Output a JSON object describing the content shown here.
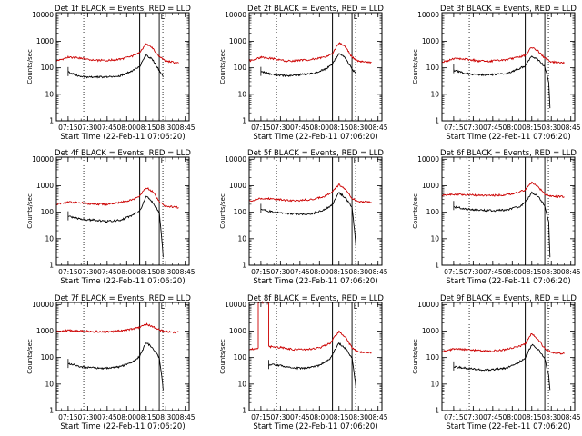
{
  "chart_data": [
    {
      "type": "line",
      "title": "Det 1f BLACK = Events, RED = LLD",
      "xlabel": "Start Time (22-Feb-11 07:06:20)",
      "ylabel": "Counts/sec",
      "xlim": [
        "07:06",
        "08:48"
      ],
      "ylim": [
        1,
        12000
      ],
      "y_scale": "log",
      "x_tick_labels": [
        "07:15",
        "07:30",
        "07:45",
        "08:00",
        "08:15",
        "08:30",
        "08:45"
      ],
      "y_tick_labels": [
        "1",
        "10",
        "100",
        "1000",
        "10000"
      ],
      "y_tick_values": [
        1,
        10,
        100,
        1000,
        10000
      ],
      "marker_lines": [
        "07:27",
        "08:10",
        "08:25"
      ],
      "flag_label": "L",
      "flag_time": "08:25",
      "series": [
        {
          "color": "#cc0000",
          "x": [
            "07:06",
            "07:15",
            "07:25",
            "07:35",
            "07:45",
            "07:55",
            "08:05",
            "08:10",
            "08:15",
            "08:20",
            "08:25",
            "08:30",
            "08:40"
          ],
          "y": [
            180,
            250,
            230,
            190,
            190,
            210,
            280,
            380,
            800,
            550,
            260,
            180,
            150
          ]
        },
        {
          "color": "#000000",
          "x": [
            "07:15",
            "07:25",
            "07:35",
            "07:45",
            "07:55",
            "08:05",
            "08:10",
            "08:15",
            "08:20",
            "08:25",
            "08:28"
          ],
          "y": [
            70,
            45,
            45,
            45,
            50,
            80,
            110,
            310,
            200,
            80,
            45
          ]
        }
      ]
    },
    {
      "type": "line",
      "title": "Det 2f BLACK = Events, RED = LLD",
      "xlabel": "Start Time (22-Feb-11 07:06:20)",
      "ylabel": "Counts/sec",
      "xlim": [
        "07:06",
        "08:48"
      ],
      "ylim": [
        1,
        12000
      ],
      "y_scale": "log",
      "x_tick_labels": [
        "07:15",
        "07:30",
        "07:45",
        "08:00",
        "08:15",
        "08:30",
        "08:45"
      ],
      "y_tick_labels": [
        "1",
        "10",
        "100",
        "1000",
        "10000"
      ],
      "y_tick_values": [
        1,
        10,
        100,
        1000,
        10000
      ],
      "marker_lines": [
        "07:27",
        "08:10",
        "08:25"
      ],
      "flag_label": "L",
      "flag_time": "08:25",
      "series": [
        {
          "color": "#cc0000",
          "x": [
            "07:06",
            "07:15",
            "07:25",
            "07:35",
            "07:45",
            "07:55",
            "08:05",
            "08:10",
            "08:15",
            "08:20",
            "08:25",
            "08:30",
            "08:40"
          ],
          "y": [
            180,
            250,
            220,
            180,
            190,
            210,
            260,
            350,
            900,
            600,
            250,
            180,
            160
          ]
        },
        {
          "color": "#000000",
          "x": [
            "07:15",
            "07:25",
            "07:35",
            "07:45",
            "07:55",
            "08:05",
            "08:10",
            "08:15",
            "08:20",
            "08:25",
            "08:28"
          ],
          "y": [
            70,
            55,
            50,
            55,
            60,
            90,
            140,
            350,
            230,
            90,
            60
          ]
        }
      ]
    },
    {
      "type": "line",
      "title": "Det 3f BLACK = Events, RED = LLD",
      "xlabel": "Start Time (22-Feb-11 07:06:20)",
      "ylabel": "Counts/sec",
      "xlim": [
        "07:06",
        "08:48"
      ],
      "ylim": [
        1,
        12000
      ],
      "y_scale": "log",
      "x_tick_labels": [
        "07:15",
        "07:30",
        "07:45",
        "08:00",
        "08:15",
        "08:30",
        "08:45"
      ],
      "y_tick_labels": [
        "1",
        "10",
        "100",
        "1000",
        "10000"
      ],
      "y_tick_values": [
        1,
        10,
        100,
        1000,
        10000
      ],
      "marker_lines": [
        "07:27",
        "08:10",
        "08:25"
      ],
      "flag_label": "L",
      "flag_time": "08:25",
      "series": [
        {
          "color": "#cc0000",
          "x": [
            "07:06",
            "07:15",
            "07:25",
            "07:35",
            "07:45",
            "07:55",
            "08:05",
            "08:10",
            "08:15",
            "08:20",
            "08:25",
            "08:30",
            "08:40"
          ],
          "y": [
            160,
            220,
            210,
            180,
            180,
            200,
            250,
            300,
            600,
            420,
            230,
            170,
            150
          ]
        },
        {
          "color": "#000000",
          "x": [
            "07:15",
            "07:25",
            "07:35",
            "07:45",
            "07:55",
            "08:05",
            "08:10",
            "08:15",
            "08:20",
            "08:25",
            "08:28",
            "08:29"
          ],
          "y": [
            80,
            60,
            55,
            55,
            60,
            90,
            120,
            280,
            200,
            110,
            30,
            3
          ]
        }
      ]
    },
    {
      "type": "line",
      "title": "Det 4f BLACK = Events, RED = LLD",
      "xlabel": "Start Time (22-Feb-11 07:06:20)",
      "ylabel": "Counts/sec",
      "xlim": [
        "07:06",
        "08:48"
      ],
      "ylim": [
        1,
        12000
      ],
      "y_scale": "log",
      "x_tick_labels": [
        "07:15",
        "07:30",
        "07:45",
        "08:00",
        "08:15",
        "08:30",
        "08:45"
      ],
      "y_tick_labels": [
        "1",
        "10",
        "100",
        "1000",
        "10000"
      ],
      "y_tick_values": [
        1,
        10,
        100,
        1000,
        10000
      ],
      "marker_lines": [
        "07:27",
        "08:10",
        "08:25"
      ],
      "flag_label": "L",
      "flag_time": "08:25",
      "series": [
        {
          "color": "#cc0000",
          "x": [
            "07:06",
            "07:15",
            "07:25",
            "07:35",
            "07:45",
            "07:55",
            "08:05",
            "08:10",
            "08:15",
            "08:20",
            "08:25",
            "08:30",
            "08:40"
          ],
          "y": [
            200,
            240,
            230,
            200,
            200,
            230,
            300,
            420,
            850,
            600,
            250,
            170,
            150
          ]
        },
        {
          "color": "#000000",
          "x": [
            "07:15",
            "07:25",
            "07:35",
            "07:45",
            "07:55",
            "08:05",
            "08:10",
            "08:15",
            "08:20",
            "08:25",
            "08:27",
            "08:28"
          ],
          "y": [
            70,
            55,
            50,
            45,
            50,
            80,
            110,
            400,
            230,
            100,
            10,
            2
          ]
        }
      ]
    },
    {
      "type": "line",
      "title": "Det 5f BLACK = Events, RED = LLD",
      "xlabel": "Start Time (22-Feb-11 07:06:20)",
      "ylabel": "Counts/sec",
      "xlim": [
        "07:06",
        "08:48"
      ],
      "ylim": [
        1,
        12000
      ],
      "y_scale": "log",
      "x_tick_labels": [
        "07:15",
        "07:30",
        "07:45",
        "08:00",
        "08:15",
        "08:30",
        "08:45"
      ],
      "y_tick_labels": [
        "1",
        "10",
        "100",
        "1000",
        "10000"
      ],
      "y_tick_values": [
        1,
        10,
        100,
        1000,
        10000
      ],
      "marker_lines": [
        "07:27",
        "08:10",
        "08:25"
      ],
      "flag_label": "L",
      "flag_time": "08:25",
      "series": [
        {
          "color": "#cc0000",
          "x": [
            "07:06",
            "07:15",
            "07:25",
            "07:35",
            "07:45",
            "07:55",
            "08:05",
            "08:10",
            "08:15",
            "08:20",
            "08:25",
            "08:30",
            "08:40"
          ],
          "y": [
            260,
            330,
            320,
            280,
            280,
            310,
            420,
            600,
            1100,
            750,
            330,
            250,
            240
          ]
        },
        {
          "color": "#000000",
          "x": [
            "07:15",
            "07:25",
            "07:35",
            "07:45",
            "07:55",
            "08:05",
            "08:10",
            "08:15",
            "08:20",
            "08:25",
            "08:27",
            "08:28"
          ],
          "y": [
            130,
            100,
            90,
            85,
            90,
            130,
            200,
            550,
            350,
            150,
            20,
            5
          ]
        }
      ]
    },
    {
      "type": "line",
      "title": "Det 6f BLACK = Events, RED = LLD",
      "xlabel": "Start Time (22-Feb-11 07:06:20)",
      "ylabel": "Counts/sec",
      "xlim": [
        "07:06",
        "08:48"
      ],
      "ylim": [
        1,
        12000
      ],
      "y_scale": "log",
      "x_tick_labels": [
        "07:15",
        "07:30",
        "07:45",
        "08:00",
        "08:15",
        "08:30",
        "08:45"
      ],
      "y_tick_labels": [
        "1",
        "10",
        "100",
        "1000",
        "10000"
      ],
      "y_tick_values": [
        1,
        10,
        100,
        1000,
        10000
      ],
      "marker_lines": [
        "07:27",
        "08:10",
        "08:25"
      ],
      "flag_label": "L",
      "flag_time": "08:25",
      "series": [
        {
          "color": "#cc0000",
          "x": [
            "07:06",
            "07:15",
            "07:25",
            "07:35",
            "07:45",
            "07:55",
            "08:05",
            "08:10",
            "08:15",
            "08:20",
            "08:25",
            "08:30",
            "08:40"
          ],
          "y": [
            430,
            480,
            460,
            430,
            430,
            450,
            560,
            700,
            1300,
            900,
            480,
            400,
            380
          ]
        },
        {
          "color": "#000000",
          "x": [
            "07:15",
            "07:25",
            "07:35",
            "07:45",
            "07:55",
            "08:05",
            "08:10",
            "08:15",
            "08:20",
            "08:25",
            "08:28",
            "08:29"
          ],
          "y": [
            160,
            130,
            120,
            115,
            120,
            160,
            230,
            550,
            380,
            180,
            40,
            2
          ]
        }
      ]
    },
    {
      "type": "line",
      "title": "Det 7f BLACK = Events, RED = LLD",
      "xlabel": "Start Time (22-Feb-11 07:06:20)",
      "ylabel": "Counts/sec",
      "xlim": [
        "07:06",
        "08:48"
      ],
      "ylim": [
        1,
        12000
      ],
      "y_scale": "log",
      "x_tick_labels": [
        "07:15",
        "07:30",
        "07:45",
        "08:00",
        "08:15",
        "08:30",
        "08:45"
      ],
      "y_tick_labels": [
        "1",
        "10",
        "100",
        "1000",
        "10000"
      ],
      "y_tick_values": [
        1,
        10,
        100,
        1000,
        10000
      ],
      "marker_lines": [
        "07:27",
        "08:10",
        "08:25"
      ],
      "flag_label": "L",
      "flag_time": "08:25",
      "series": [
        {
          "color": "#cc0000",
          "x": [
            "07:06",
            "07:15",
            "07:25",
            "07:35",
            "07:45",
            "07:55",
            "08:05",
            "08:10",
            "08:15",
            "08:20",
            "08:25",
            "08:30",
            "08:40"
          ],
          "y": [
            950,
            1050,
            1000,
            950,
            950,
            1000,
            1200,
            1400,
            1800,
            1500,
            1100,
            950,
            900
          ]
        },
        {
          "color": "#000000",
          "x": [
            "07:15",
            "07:25",
            "07:35",
            "07:45",
            "07:55",
            "08:05",
            "08:10",
            "08:15",
            "08:20",
            "08:25",
            "08:27",
            "08:28"
          ],
          "y": [
            60,
            45,
            40,
            40,
            45,
            70,
            110,
            380,
            230,
            100,
            20,
            6
          ]
        }
      ]
    },
    {
      "type": "line",
      "title": "Det 8f BLACK = Events, RED = LLD",
      "xlabel": "Start Time (22-Feb-11 07:06:20)",
      "ylabel": "Counts/sec",
      "xlim": [
        "07:06",
        "08:48"
      ],
      "ylim": [
        1,
        12000
      ],
      "y_scale": "log",
      "x_tick_labels": [
        "07:15",
        "07:30",
        "07:45",
        "08:00",
        "08:15",
        "08:30",
        "08:45"
      ],
      "y_tick_labels": [
        "1",
        "10",
        "100",
        "1000",
        "10000"
      ],
      "y_tick_values": [
        1,
        10,
        100,
        1000,
        10000
      ],
      "marker_lines": [
        "07:27",
        "08:10",
        "08:25"
      ],
      "flag_label": "L",
      "flag_time": "08:25",
      "series": [
        {
          "color": "#cc0000",
          "x": [
            "07:06",
            "07:13",
            "07:13",
            "07:21",
            "07:21",
            "07:30",
            "07:40",
            "07:50",
            "08:00",
            "08:08",
            "08:15",
            "08:20",
            "08:25",
            "08:30",
            "08:40"
          ],
          "y": [
            200,
            230,
            12000,
            12000,
            260,
            240,
            200,
            200,
            230,
            350,
            950,
            600,
            230,
            160,
            150
          ]
        },
        {
          "color": "#000000",
          "x": [
            "07:21",
            "07:30",
            "07:40",
            "07:50",
            "08:00",
            "08:08",
            "08:15",
            "08:20",
            "08:25",
            "08:27",
            "08:28"
          ],
          "y": [
            55,
            50,
            40,
            40,
            50,
            90,
            340,
            220,
            100,
            20,
            7
          ]
        }
      ]
    },
    {
      "type": "line",
      "title": "Det 9f BLACK = Events, RED = LLD",
      "xlabel": "Start Time (22-Feb-11 07:06:20)",
      "ylabel": "Counts/sec",
      "xlim": [
        "07:06",
        "08:48"
      ],
      "ylim": [
        1,
        12000
      ],
      "y_scale": "log",
      "x_tick_labels": [
        "07:15",
        "07:30",
        "07:45",
        "08:00",
        "08:15",
        "08:30",
        "08:45"
      ],
      "y_tick_labels": [
        "1",
        "10",
        "100",
        "1000",
        "10000"
      ],
      "y_tick_values": [
        1,
        10,
        100,
        1000,
        10000
      ],
      "marker_lines": [
        "07:27",
        "08:10",
        "08:25"
      ],
      "flag_label": "L",
      "flag_time": "08:25",
      "series": [
        {
          "color": "#cc0000",
          "x": [
            "07:06",
            "07:15",
            "07:25",
            "07:35",
            "07:45",
            "07:55",
            "08:05",
            "08:10",
            "08:15",
            "08:20",
            "08:25",
            "08:30",
            "08:40"
          ],
          "y": [
            170,
            210,
            200,
            180,
            180,
            200,
            260,
            330,
            800,
            480,
            220,
            160,
            140
          ]
        },
        {
          "color": "#000000",
          "x": [
            "07:15",
            "07:25",
            "07:35",
            "07:45",
            "07:55",
            "08:05",
            "08:10",
            "08:15",
            "08:20",
            "08:25",
            "08:28",
            "08:29"
          ],
          "y": [
            45,
            40,
            35,
            35,
            40,
            65,
            100,
            300,
            200,
            90,
            20,
            6
          ]
        }
      ]
    }
  ]
}
